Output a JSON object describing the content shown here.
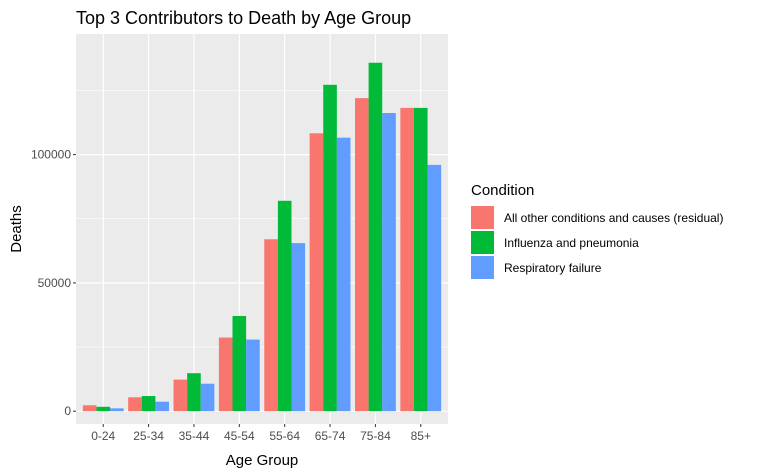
{
  "chart_data": {
    "type": "bar",
    "title": "Top 3 Contributors to Death by Age Group",
    "xlabel": "Age Group",
    "ylabel": "Deaths",
    "categories": [
      "0-24",
      "25-34",
      "35-44",
      "45-54",
      "55-64",
      "65-74",
      "75-84",
      "85+"
    ],
    "series": [
      {
        "name": "All other conditions and causes (residual)",
        "color": "#F8766D",
        "values": [
          2300,
          5400,
          12300,
          28700,
          67000,
          108300,
          122000,
          118200
        ]
      },
      {
        "name": "Influenza and pneumonia",
        "color": "#00BA38",
        "values": [
          1700,
          5900,
          14800,
          37100,
          82000,
          127200,
          135800,
          118200
        ]
      },
      {
        "name": "Respiratory failure",
        "color": "#619CFF",
        "values": [
          1100,
          3700,
          10700,
          27900,
          65500,
          106600,
          116200,
          96000
        ]
      }
    ],
    "yticks": [
      0,
      50000,
      100000
    ],
    "ytick_labels": [
      "0",
      "50000",
      "100000"
    ],
    "ylim": [
      -5000,
      147000
    ],
    "legend_title": "Condition",
    "legend_position": "right",
    "grid": true
  }
}
